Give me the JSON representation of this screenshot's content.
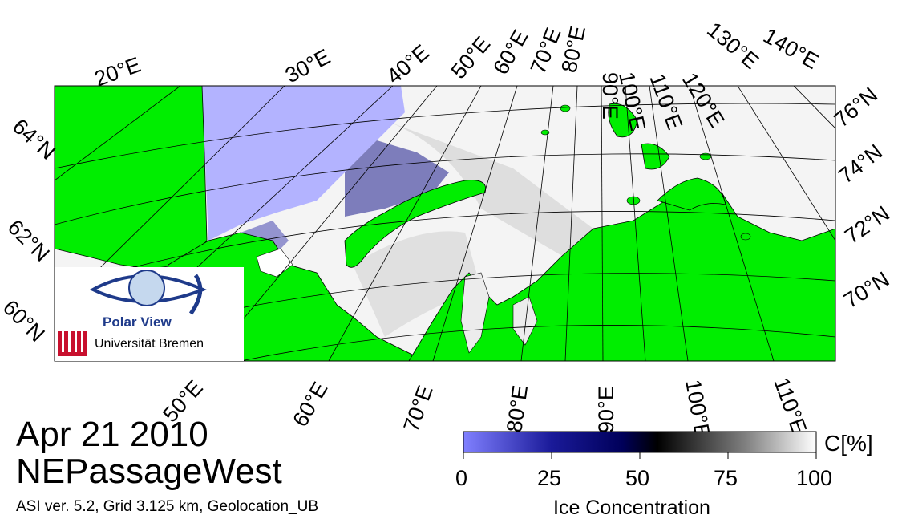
{
  "header": {
    "date": "Apr 21 2010",
    "region": "NEPassageWest",
    "meta": "ASI ver. 5.2,  Grid 3.125 km, Geolocation_UB"
  },
  "logo": {
    "name": "Polar View",
    "institution": "Universität Bremen",
    "eye_color": "#1e3a8a",
    "seal_color": "#c8102e"
  },
  "map": {
    "land_color": "#00ee00",
    "open_water_color": "#b3b3ff",
    "meridian_labels_top": [
      "20°E",
      "30°E",
      "40°E",
      "50°E",
      "60°E",
      "70°E",
      "80°E",
      "90°E",
      "100°E",
      "110°E",
      "120°E",
      "130°E",
      "140°E"
    ],
    "meridian_labels_bottom": [
      "50°E",
      "60°E",
      "70°E",
      "80°E",
      "90°E",
      "100°E",
      "110°E"
    ],
    "parallel_labels_left": [
      "64°N",
      "62°N",
      "60°N"
    ],
    "parallel_labels_right": [
      "76°N",
      "74°N",
      "72°N",
      "70°N"
    ]
  },
  "colorbar": {
    "unit": "C[%]",
    "title": "Ice Concentration",
    "ticks": [
      "0",
      "25",
      "50",
      "75",
      "100"
    ],
    "colors": [
      "#8080ff",
      "#00007a",
      "#000000",
      "#808080",
      "#ffffff"
    ]
  }
}
